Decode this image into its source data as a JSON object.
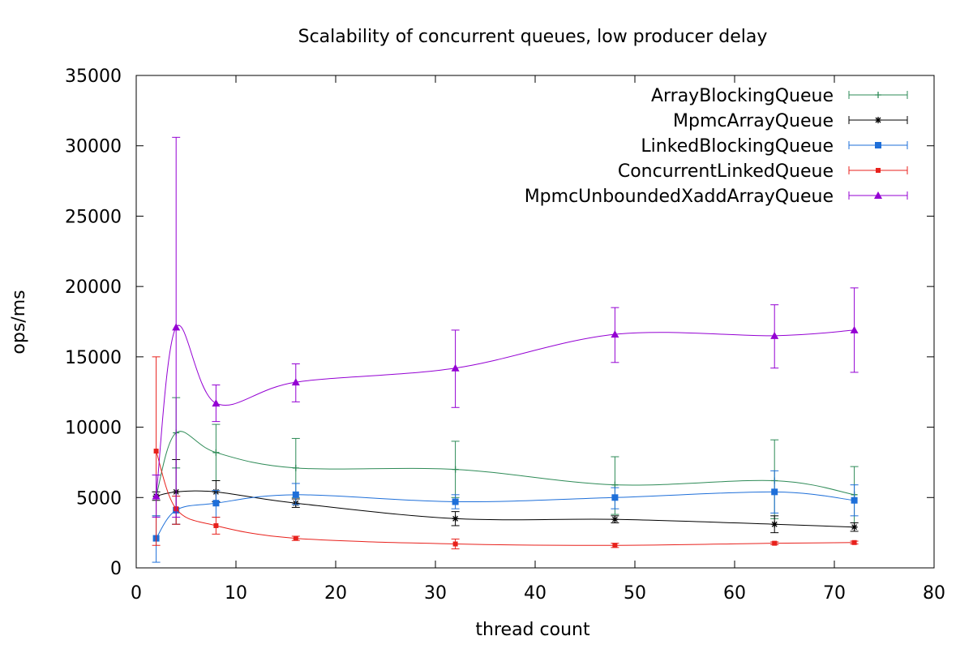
{
  "chart_data": {
    "type": "line",
    "title": "Scalability of concurrent queues, low producer delay",
    "xlabel": "thread count",
    "ylabel": "ops/ms",
    "xlim": [
      0,
      80
    ],
    "ylim": [
      0,
      35000
    ],
    "xticks": [
      0,
      10,
      20,
      30,
      40,
      50,
      60,
      70,
      80
    ],
    "yticks": [
      0,
      5000,
      10000,
      15000,
      20000,
      25000,
      30000,
      35000
    ],
    "grid": false,
    "legend_position": "top-right",
    "x": [
      2,
      4,
      8,
      16,
      32,
      48,
      64,
      72
    ],
    "series": [
      {
        "name": "ArrayBlockingQueue",
        "color": "#2e8b57",
        "marker": "plus",
        "values": [
          5100,
          9600,
          8200,
          7100,
          7000,
          5900,
          6200,
          5200
        ],
        "error_low": [
          3700,
          7100,
          6200,
          5000,
          5000,
          3800,
          3500,
          3200
        ],
        "error_high": [
          6600,
          12100,
          10200,
          9200,
          9000,
          7900,
          9100,
          7200
        ]
      },
      {
        "name": "MpmcArrayQueue",
        "color": "#000000",
        "marker": "star",
        "values": [
          5100,
          5400,
          5400,
          4600,
          3500,
          3450,
          3100,
          2900
        ],
        "error_low": [
          4800,
          3100,
          4700,
          4300,
          3000,
          3200,
          2500,
          2600
        ],
        "error_high": [
          5400,
          7700,
          6200,
          4900,
          4000,
          3700,
          3700,
          3200
        ]
      },
      {
        "name": "LinkedBlockingQueue",
        "color": "#1e6fd9",
        "marker": "square",
        "values": [
          2100,
          4100,
          4600,
          5200,
          4700,
          5000,
          5400,
          4800
        ],
        "error_low": [
          400,
          3100,
          3600,
          4500,
          4200,
          4200,
          3900,
          3700
        ],
        "error_high": [
          3700,
          5100,
          5500,
          6000,
          5200,
          5700,
          6900,
          5900
        ]
      },
      {
        "name": "ConcurrentLinkedQueue",
        "color": "#e8211c",
        "marker": "square-small",
        "values": [
          8300,
          4200,
          3000,
          2100,
          1700,
          1600,
          1750,
          1800
        ],
        "error_low": [
          1600,
          3100,
          2400,
          1950,
          1350,
          1450,
          1650,
          1700
        ],
        "error_high": [
          15000,
          5100,
          3600,
          2250,
          2050,
          1750,
          1850,
          1900
        ]
      },
      {
        "name": "MpmcUnboundedXaddArrayQueue",
        "color": "#9400d3",
        "marker": "triangle",
        "values": [
          5100,
          17100,
          11700,
          13200,
          14200,
          16600,
          16500,
          16900
        ],
        "error_low": [
          3600,
          3600,
          10400,
          11800,
          11400,
          14600,
          14200,
          13900
        ],
        "error_high": [
          6600,
          30600,
          13000,
          14500,
          16900,
          18500,
          18700,
          19900
        ]
      }
    ]
  }
}
